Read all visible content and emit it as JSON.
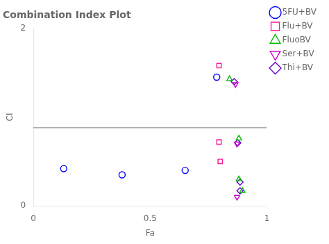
{
  "chart_data": {
    "type": "scatter",
    "title": "Combination Index Plot",
    "xlabel": "Fa",
    "ylabel": "CI",
    "xlim": [
      0,
      1.0
    ],
    "ylim": [
      0,
      2.0
    ],
    "xticks": [
      0,
      0.5,
      1
    ],
    "yticks": [
      0,
      2
    ],
    "grid": false,
    "legend": "right",
    "reference_line": {
      "y": 0.88,
      "color": "gray"
    },
    "series": [
      {
        "name": "5FU+BV",
        "color": "#0000ff",
        "marker": "circle",
        "x": [
          0.13,
          0.38,
          0.65,
          0.785
        ],
        "values": [
          0.42,
          0.35,
          0.4,
          1.45
        ]
      },
      {
        "name": "Flu+BV",
        "color": "#ff1493",
        "marker": "square",
        "x": [
          0.795,
          0.795,
          0.8
        ],
        "values": [
          1.58,
          0.72,
          0.5
        ]
      },
      {
        "name": "FluoBV",
        "color": "#00bb00",
        "marker": "triangle_up",
        "x": [
          0.84,
          0.88,
          0.88,
          0.895
        ],
        "values": [
          1.43,
          0.76,
          0.3,
          0.17
        ]
      },
      {
        "name": "Ser+BV",
        "color": "#cc00cc",
        "marker": "triangle_down",
        "x": [
          0.865,
          0.872,
          0.872
        ],
        "values": [
          1.37,
          0.7,
          0.1
        ]
      },
      {
        "name": "Thi+BV",
        "color": "#6600cc",
        "marker": "diamond",
        "x": [
          0.86,
          0.875,
          0.885,
          0.885
        ],
        "values": [
          1.4,
          0.71,
          0.27,
          0.17
        ]
      }
    ]
  }
}
